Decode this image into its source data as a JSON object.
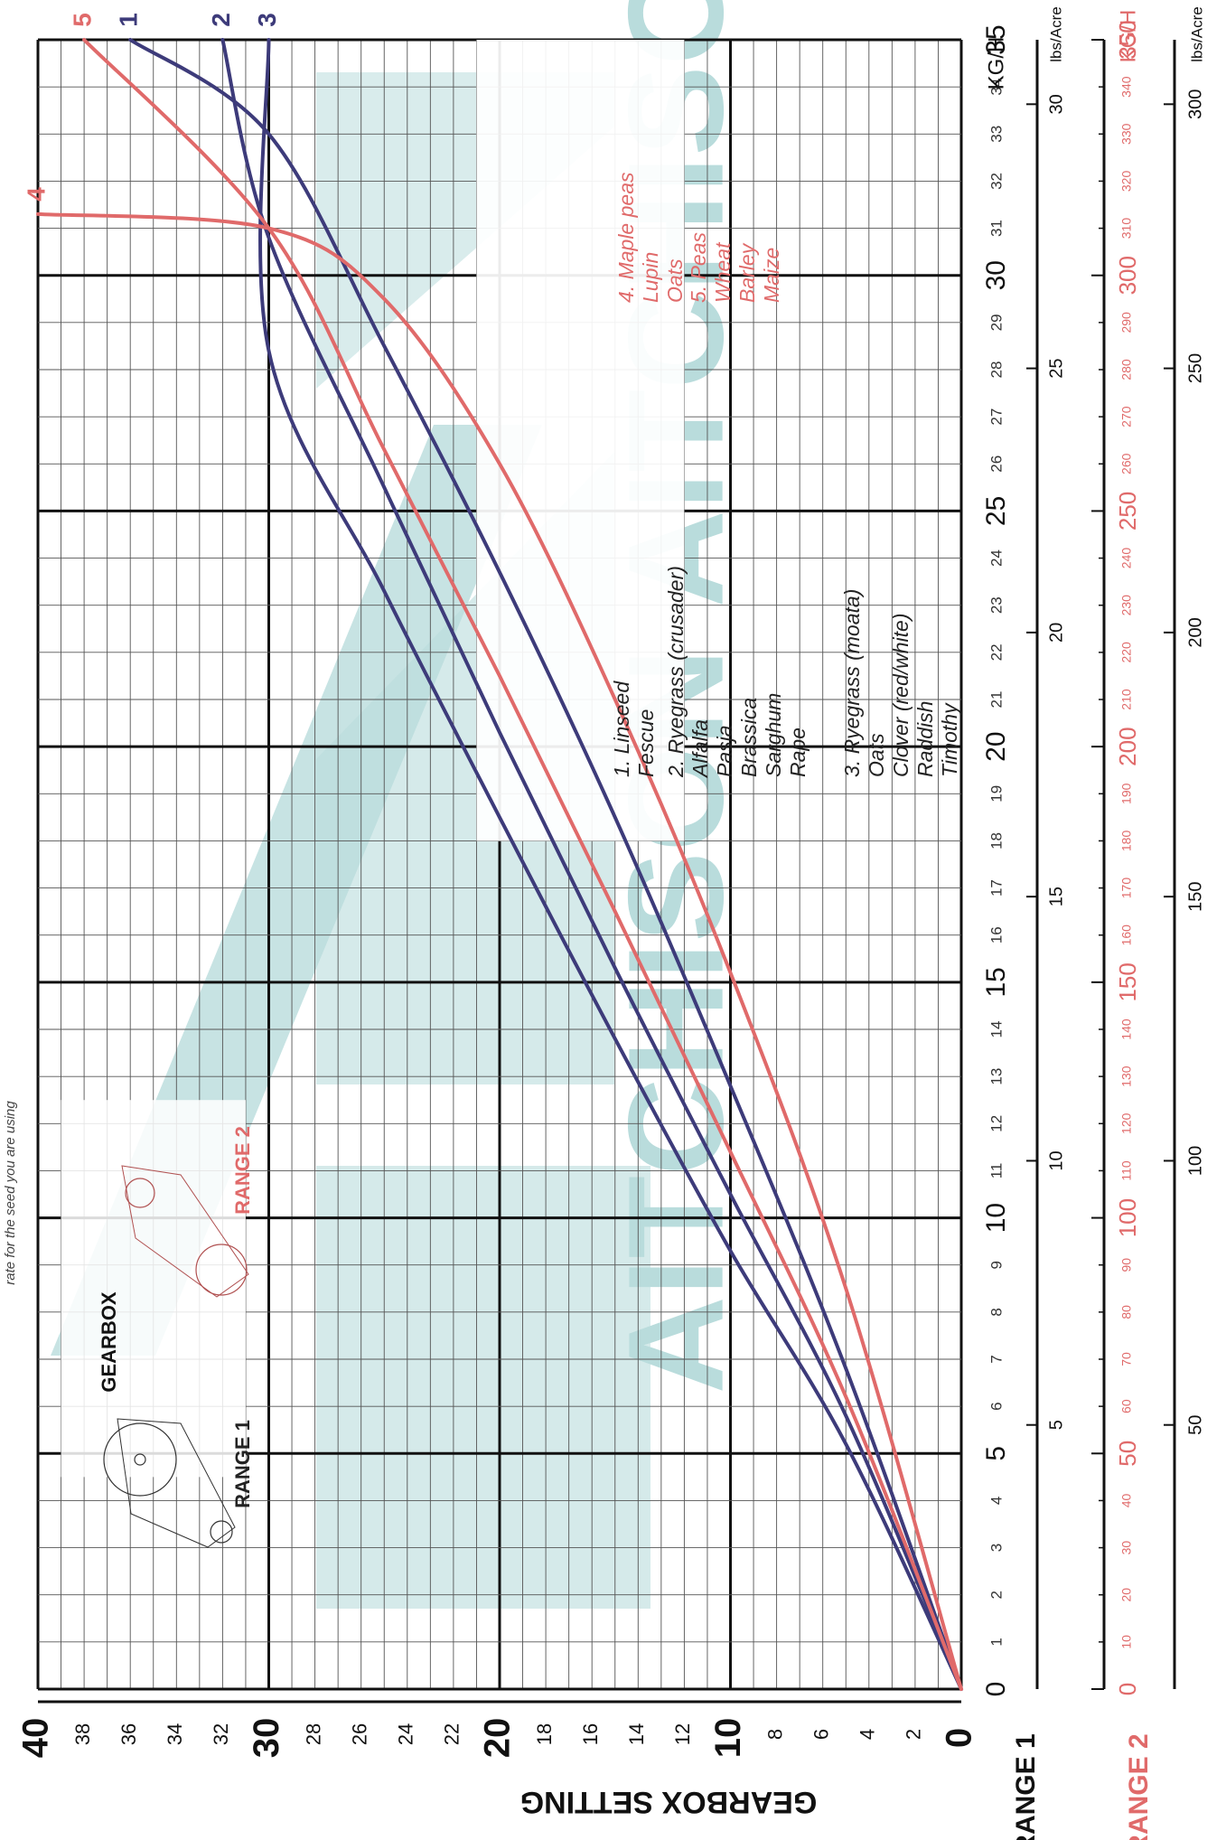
{
  "chart_data": {
    "type": "line",
    "title": "",
    "header_note": "rate for the seed you are using",
    "x_axis": {
      "label": "GEARBOX SETTING",
      "range": [
        0,
        40
      ],
      "major_ticks": [
        0,
        10,
        20,
        30,
        40
      ],
      "minor_ticks": [
        2,
        4,
        6,
        8,
        12,
        14,
        16,
        18,
        22,
        24,
        26,
        28,
        32,
        34,
        36,
        38
      ]
    },
    "y_axis": {
      "label": "KG/H",
      "range": [
        0,
        35
      ],
      "major_ticks": [
        0,
        5,
        10,
        15,
        20,
        25,
        30,
        35
      ],
      "minor_ticks": [
        1,
        2,
        3,
        4,
        6,
        7,
        8,
        9,
        11,
        12,
        13,
        14,
        16,
        17,
        18,
        19,
        21,
        22,
        23,
        24,
        26,
        27,
        28,
        29,
        31,
        32,
        33,
        34
      ]
    },
    "scales": {
      "range1_label": "RANGE 1",
      "range2_label": "RANGE 2",
      "range1_lbs_unit": "lbs/Acre",
      "range1_lbs_ticks": [
        5,
        10,
        15,
        20,
        25,
        30
      ],
      "range2_kgh_unit": "KG/H",
      "range2_kgh_major": [
        0,
        50,
        100,
        150,
        200,
        250,
        300,
        350
      ],
      "range2_kgh_minor": [
        10,
        20,
        30,
        40,
        60,
        70,
        80,
        90,
        110,
        120,
        130,
        140,
        160,
        170,
        180,
        190,
        210,
        220,
        230,
        240,
        260,
        270,
        280,
        290,
        310,
        320,
        330,
        340
      ],
      "range2_lbs_unit": "lbs/Acre",
      "range2_lbs_ticks": [
        50,
        100,
        150,
        200,
        250,
        300
      ]
    },
    "series": [
      {
        "name": "1",
        "color": "#3d3b7a",
        "x": [
          0,
          5,
          10,
          15,
          20,
          25,
          30,
          36
        ],
        "y": [
          0,
          6.8,
          12.8,
          18.5,
          23.7,
          28.5,
          33.0,
          35.0
        ]
      },
      {
        "name": "2",
        "color": "#3d3b7a",
        "x": [
          0,
          5,
          10,
          15,
          20,
          25,
          30,
          32
        ],
        "y": [
          0,
          5.8,
          10.5,
          15.3,
          20.3,
          25.5,
          30.8,
          35.0
        ]
      },
      {
        "name": "3",
        "color": "#3d3b7a",
        "x": [
          0,
          5,
          10,
          15,
          20,
          25,
          30,
          30
        ],
        "y": [
          0,
          5.2,
          9.3,
          13.8,
          18.5,
          23.3,
          28.4,
          35.0
        ]
      },
      {
        "name": "4",
        "color": "#e06a6a",
        "x": [
          0,
          5,
          10,
          15,
          20,
          25,
          30,
          40
        ],
        "y": [
          0,
          8.5,
          15.2,
          21.0,
          26.0,
          29.5,
          31.0,
          31.3
        ]
      },
      {
        "name": "5",
        "color": "#e06a6a",
        "x": [
          0,
          5,
          10,
          15,
          20,
          25,
          30,
          38
        ],
        "y": [
          0,
          6.2,
          11.4,
          16.5,
          21.5,
          26.3,
          31.0,
          35.0
        ]
      }
    ],
    "legend": {
      "placement": "top-right",
      "groups": [
        {
          "number": "1.",
          "color": "#222222",
          "items": [
            "Linseed",
            "Fescue"
          ]
        },
        {
          "number": "2.",
          "color": "#222222",
          "items": [
            "Ryegrass (crusader)",
            "Alfalfa",
            "Pasja",
            "Brassica",
            "Sarghum",
            "Rape"
          ]
        },
        {
          "number": "3.",
          "color": "#222222",
          "items": [
            "Ryegrass (moata)",
            "Oats",
            "Clover (red/white)",
            "Raddish",
            "Timothy"
          ]
        },
        {
          "number": "4.",
          "color": "#e06a6a",
          "items": [
            "Maple peas",
            "Lupin",
            "Oats"
          ]
        },
        {
          "number": "5.",
          "color": "#e06a6a",
          "items": [
            "Peas",
            "Wheat",
            "Barley",
            "Maize"
          ]
        }
      ]
    },
    "gearbox_inset": {
      "title": "GEARBOX",
      "range1": "RANGE 1",
      "range2": "RANGE 2"
    },
    "watermark": "AITCHISON",
    "grid": true
  },
  "colors": {
    "grid": "#555555",
    "grid_major": "#111111",
    "blue": "#3d3b7a",
    "red": "#e06a6a",
    "watermark": "#b9dcdc"
  }
}
